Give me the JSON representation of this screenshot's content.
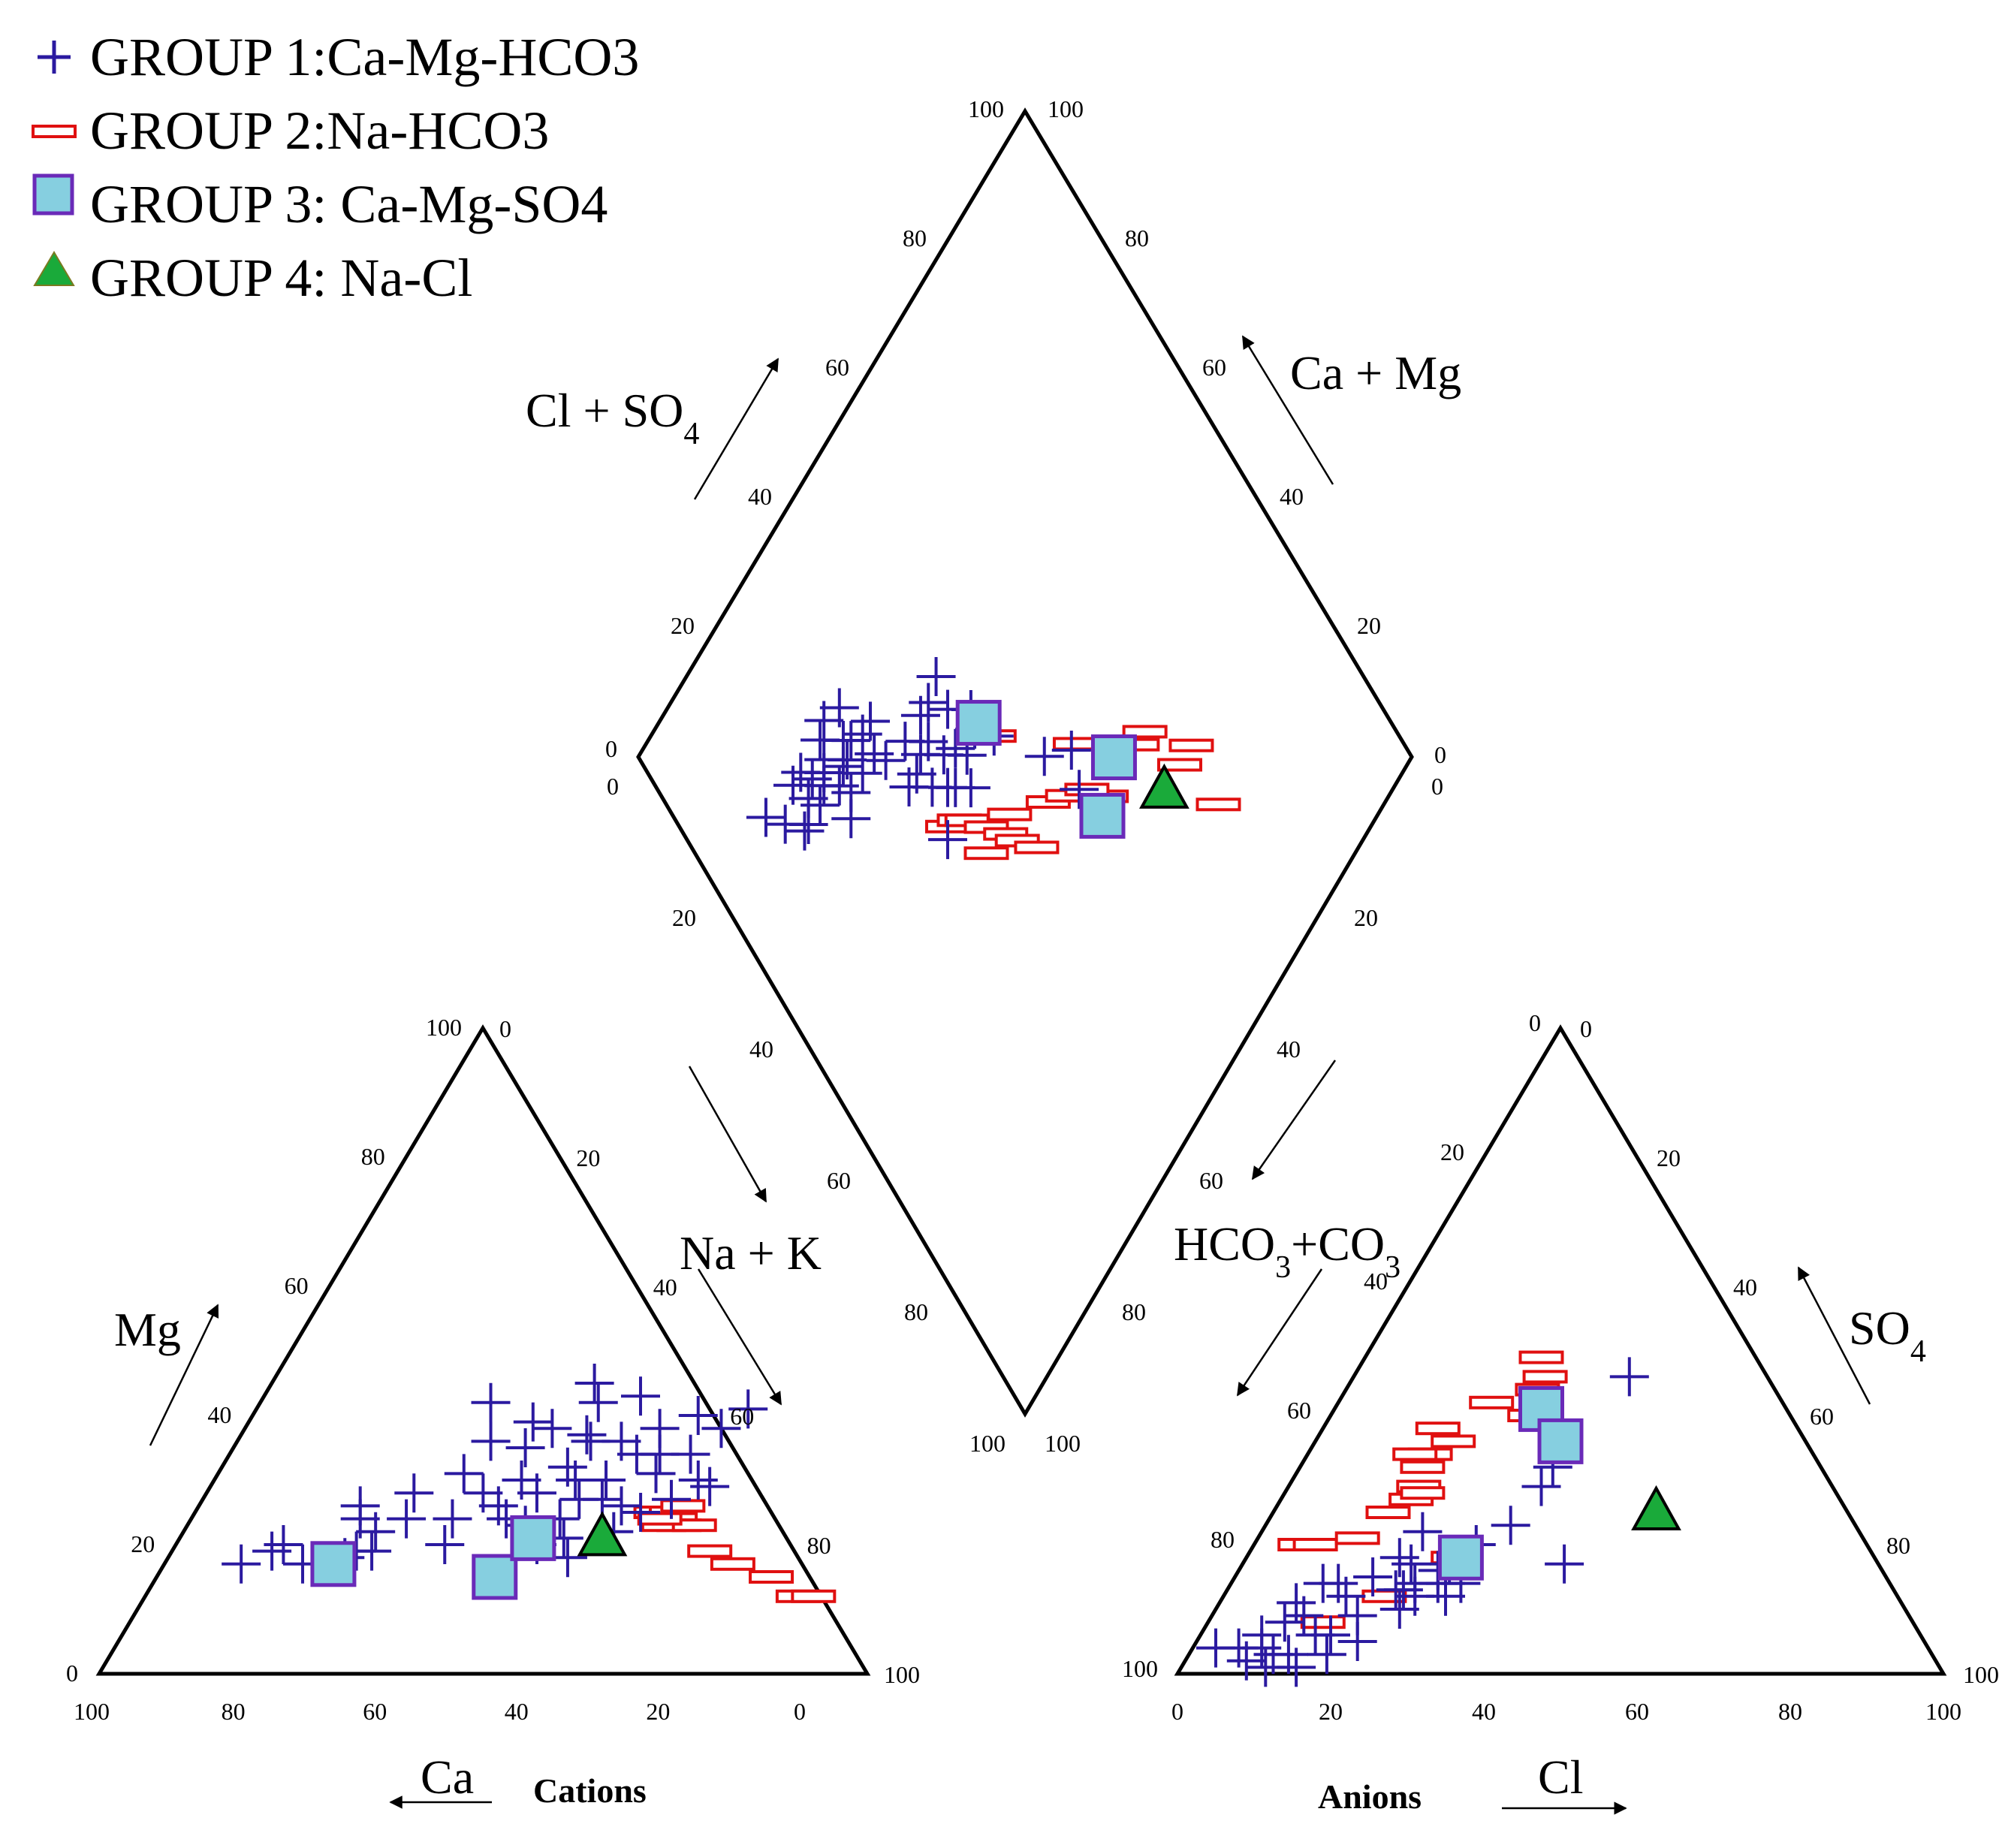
{
  "chart_data": {
    "type": "scatter",
    "subtype": "piper-diagram",
    "legend": [
      {
        "name": "GROUP 1:Ca-Mg-HCO3",
        "marker": "plus",
        "color": "#2b1aa0"
      },
      {
        "name": "GROUP 2:Na-HCO3",
        "marker": "rect",
        "color": "#e01010"
      },
      {
        "name": "GROUP 3: Ca-Mg-SO4",
        "marker": "square",
        "color": "#86cfe0",
        "edge": "#6a2ab8"
      },
      {
        "name": "GROUP 4: Na-Cl",
        "marker": "triangle",
        "color": "#1aaa3a",
        "edge": "#000000"
      }
    ],
    "cation_triangle": {
      "title": "Cations",
      "axes": {
        "ca": "Ca",
        "mg": "Mg",
        "nak": "Na + K"
      },
      "ticks": {
        "bottom": [
          "100",
          "80",
          "60",
          "40",
          "20",
          "0"
        ],
        "left": [
          "0",
          "20",
          "40",
          "60",
          "80",
          "100"
        ],
        "right": [
          "0",
          "20",
          "40",
          "60",
          "80",
          "100"
        ]
      },
      "series": {
        "g1": [
          [
            10,
            17
          ],
          [
            13,
            19
          ],
          [
            14,
            20
          ],
          [
            18,
            17
          ],
          [
            22,
            24
          ],
          [
            28,
            24
          ],
          [
            24,
            19
          ],
          [
            25,
            22
          ],
          [
            27,
            28
          ],
          [
            35,
            20
          ],
          [
            33,
            36
          ],
          [
            36,
            28
          ],
          [
            38,
            35
          ],
          [
            40,
            30
          ],
          [
            40,
            38
          ],
          [
            42,
            45
          ],
          [
            44,
            42
          ],
          [
            45,
            37
          ],
          [
            46,
            36
          ],
          [
            47,
            20
          ],
          [
            47,
            30
          ],
          [
            48,
            24
          ],
          [
            49,
            27
          ],
          [
            49,
            43
          ],
          [
            50,
            21
          ],
          [
            52,
            18
          ],
          [
            52,
            27
          ],
          [
            53,
            34
          ],
          [
            55,
            26
          ],
          [
            56,
            34
          ],
          [
            58,
            25
          ],
          [
            58,
            40
          ],
          [
            63,
            30
          ],
          [
            65,
            29
          ],
          [
            34,
            24
          ],
          [
            44,
            23
          ],
          [
            56,
            22
          ],
          [
            39,
            26
          ],
          [
            51,
            30
          ],
          [
            43,
            28
          ],
          [
            23,
            18
          ],
          [
            26,
            19
          ],
          [
            54,
            38
          ],
          [
            37,
            39
          ],
          [
            60,
            34
          ],
          [
            61,
            27
          ],
          [
            57,
            31
          ],
          [
            32,
            31
          ],
          [
            45,
            32
          ],
          [
            50,
            36
          ],
          [
            62,
            38
          ],
          [
            64,
            41
          ],
          [
            21,
            26
          ],
          [
            30,
            42
          ],
          [
            41,
            24
          ]
        ],
        "g2": [
          [
            60,
            25
          ],
          [
            62,
            25
          ],
          [
            63,
            24
          ],
          [
            64,
            23
          ],
          [
            62,
            23
          ],
          [
            66,
            23
          ],
          [
            70,
            19
          ],
          [
            74,
            17
          ],
          [
            80,
            15
          ],
          [
            85,
            12
          ],
          [
            87,
            12
          ],
          [
            63,
            26
          ],
          [
            61,
            24
          ]
        ],
        "g3": [
          [
            22,
            17
          ],
          [
            44,
            15
          ],
          [
            46,
            21
          ]
        ],
        "g4": [
          [
            55,
            21
          ]
        ]
      }
    },
    "anion_triangle": {
      "title": "Anions",
      "axes": {
        "cl": "Cl",
        "so4": "SO4",
        "hco3": "HCO3+CO3"
      },
      "ticks": {
        "bottom": [
          "0",
          "20",
          "40",
          "60",
          "80",
          "100"
        ],
        "left": [
          "100",
          "80",
          "60",
          "40",
          "20",
          "0"
        ],
        "right": [
          "0",
          "20",
          "40",
          "60",
          "80",
          "100"
        ]
      },
      "series": {
        "g1": [
          [
            3,
            4
          ],
          [
            6,
            4
          ],
          [
            8,
            6
          ],
          [
            9,
            4
          ],
          [
            10,
            8
          ],
          [
            11,
            1
          ],
          [
            11,
            3
          ],
          [
            12,
            9
          ],
          [
            13,
            3
          ],
          [
            14,
            14
          ],
          [
            15,
            6
          ],
          [
            16,
            12
          ],
          [
            17,
            6
          ],
          [
            18,
            15
          ],
          [
            20,
            18
          ],
          [
            22,
            13
          ],
          [
            22,
            17
          ],
          [
            23,
            13
          ],
          [
            24,
            10
          ],
          [
            25,
            12
          ],
          [
            27,
            14
          ],
          [
            28,
            14
          ],
          [
            30,
            14
          ],
          [
            21,
            5
          ],
          [
            19,
            9
          ],
          [
            26,
            16
          ],
          [
            33,
            29
          ],
          [
            32,
            23
          ],
          [
            33,
            32
          ],
          [
            42,
            17
          ],
          [
            36,
            46
          ],
          [
            15,
            1
          ],
          [
            10,
            11
          ],
          [
            29,
            20
          ],
          [
            27,
            17
          ],
          [
            29,
            12
          ],
          [
            21,
            22
          ],
          [
            8,
            2
          ],
          [
            12,
            14
          ],
          [
            18,
            3
          ],
          [
            24,
            14
          ]
        ],
        "g2": [
          [
            15,
            38
          ],
          [
            16,
            34
          ],
          [
            18,
            36
          ],
          [
            17,
            27
          ],
          [
            15,
            25
          ],
          [
            17,
            29
          ],
          [
            16,
            32
          ],
          [
            18,
            28
          ],
          [
            20,
            42
          ],
          [
            23,
            49
          ],
          [
            25,
            46
          ],
          [
            25,
            44
          ],
          [
            26,
            40
          ],
          [
            6,
            20
          ],
          [
            8,
            20
          ],
          [
            13,
            21
          ],
          [
            15,
            8
          ],
          [
            21,
            12
          ],
          [
            27,
            18
          ],
          [
            14,
            34
          ]
        ],
        "g3": [
          [
            27,
            41
          ],
          [
            32,
            36
          ],
          [
            28,
            18
          ]
        ],
        "g4": [
          [
            50,
            25
          ]
        ]
      }
    },
    "diamond": {
      "axes": {
        "cl_so4": "Cl + SO4",
        "ca_mg": "Ca + Mg",
        "na_k": "Na + K",
        "hco3_co3": "HCO3+CO3"
      },
      "ticks": {
        "upper_left": [
          "0",
          "20",
          "40",
          "60",
          "80",
          "100"
        ],
        "upper_right": [
          "100",
          "80",
          "60",
          "40",
          "20",
          "0"
        ],
        "lower_left": [
          "0",
          "20",
          "40",
          "60",
          "80",
          "100"
        ],
        "lower_right": [
          "0",
          "20",
          "40",
          "60",
          "80",
          "100"
        ]
      },
      "series": {
        "g1": [
          [
            12,
            21
          ],
          [
            14,
            24
          ],
          [
            16,
            27
          ],
          [
            17,
            27
          ],
          [
            18,
            22
          ],
          [
            20,
            22
          ],
          [
            21,
            24
          ],
          [
            22,
            26
          ],
          [
            23,
            25
          ],
          [
            23,
            32
          ],
          [
            24,
            28
          ],
          [
            25,
            30
          ],
          [
            26,
            27
          ],
          [
            27,
            21
          ],
          [
            27,
            27
          ],
          [
            28,
            30
          ],
          [
            29,
            26
          ],
          [
            30,
            22
          ],
          [
            31,
            27
          ],
          [
            32,
            32
          ],
          [
            33,
            27
          ],
          [
            35,
            37
          ],
          [
            34,
            46
          ],
          [
            36,
            40
          ],
          [
            37,
            36
          ],
          [
            40,
            39
          ],
          [
            39,
            36
          ],
          [
            41,
            45
          ],
          [
            42,
            40
          ],
          [
            42,
            33
          ],
          [
            44,
            36
          ],
          [
            45,
            32
          ],
          [
            48,
            44
          ],
          [
            53,
            52
          ],
          [
            55,
            59
          ],
          [
            57,
            55
          ],
          [
            19,
            25
          ],
          [
            25,
            22
          ],
          [
            38,
            42
          ],
          [
            46,
            41
          ],
          [
            31,
            30
          ],
          [
            28,
            25
          ],
          [
            20,
            27
          ],
          [
            36,
            33
          ],
          [
            43,
            42
          ],
          [
            39,
            43
          ],
          [
            24,
            24
          ],
          [
            47,
            39
          ],
          [
            40,
            33
          ],
          [
            33,
            37
          ]
        ],
        "g2": [
          [
            35,
            45
          ],
          [
            37,
            46
          ],
          [
            38,
            47
          ],
          [
            40,
            50
          ],
          [
            38,
            52
          ],
          [
            42,
            53
          ],
          [
            43,
            55
          ],
          [
            45,
            58
          ],
          [
            50,
            56
          ],
          [
            53,
            58
          ],
          [
            58,
            55
          ],
          [
            58,
            63
          ],
          [
            62,
            61
          ],
          [
            66,
            63
          ],
          [
            68,
            63
          ],
          [
            70,
            70
          ],
          [
            73,
            70
          ],
          [
            72,
            78
          ],
          [
            48,
            44
          ],
          [
            44,
            52
          ],
          [
            56,
            60
          ]
        ],
        "g3": [
          [
            47,
            41
          ],
          [
            56,
            64
          ],
          [
            62,
            61
          ]
        ],
        "g4": [
          [
            66,
            70
          ]
        ]
      }
    }
  }
}
